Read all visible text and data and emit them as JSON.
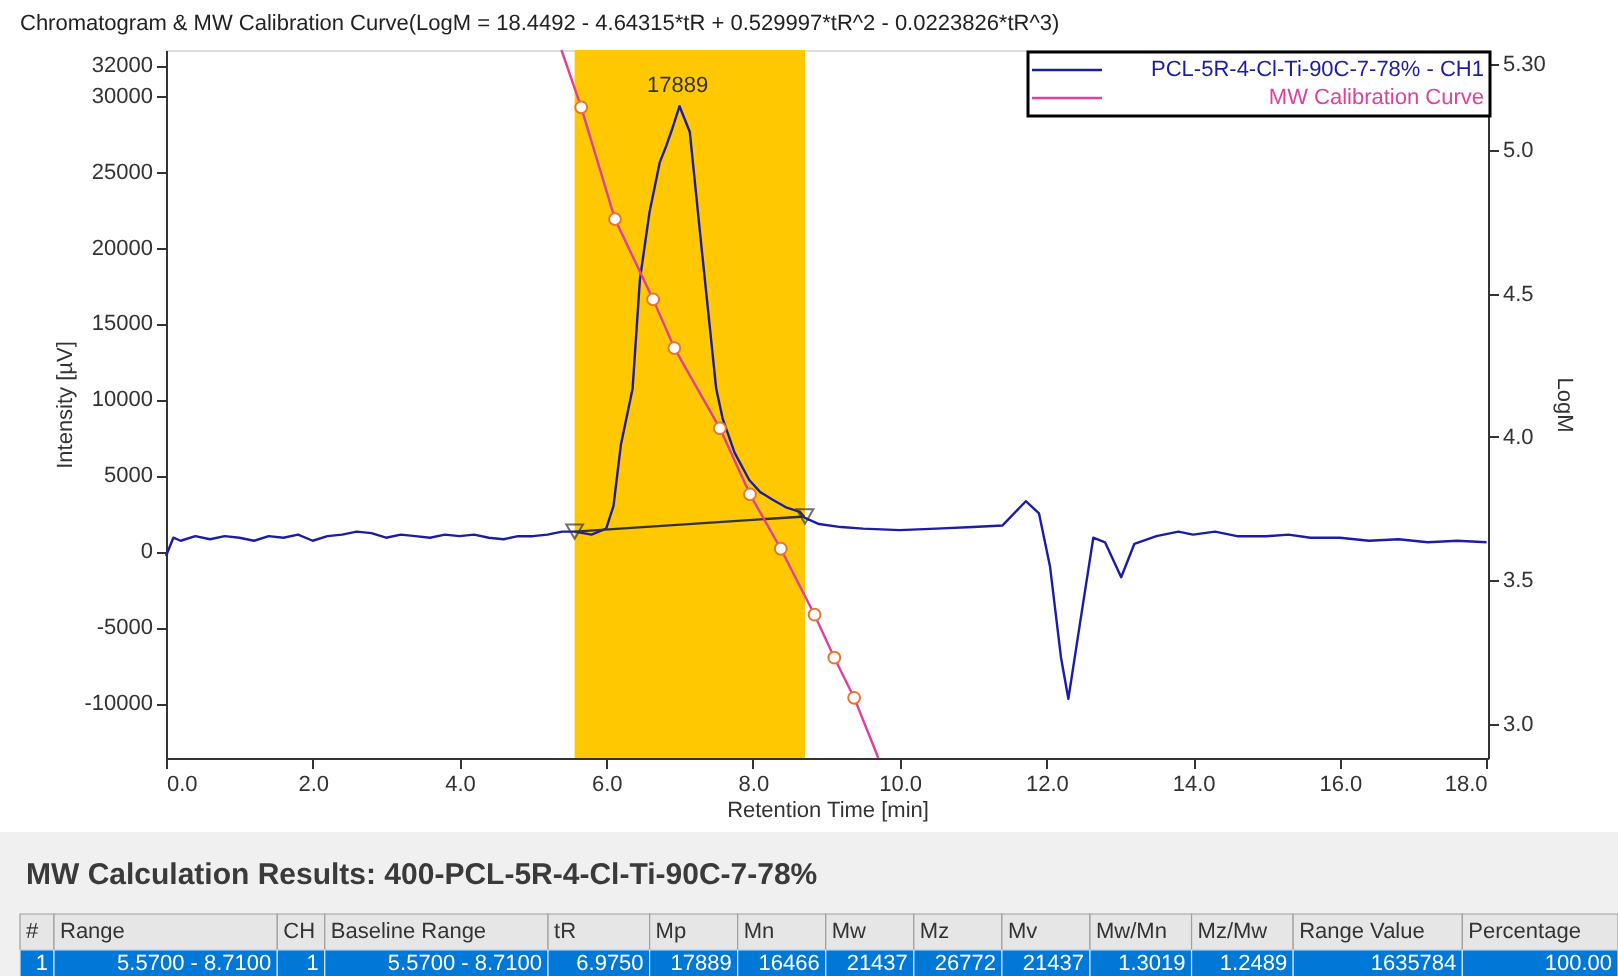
{
  "chart_data": {
    "type": "line",
    "title": "Chromatogram & MW Calibration Curve(LogM = 18.4492 - 4.64315*tR + 0.529997*tR^2 - 0.0223826*tR^3)",
    "xlabel": "Retention Time [min]",
    "ylabel": "Intensity [µV]",
    "y2label": "LogM",
    "xlim": [
      0,
      18.02
    ],
    "xticks": [
      {
        "value": 0,
        "label": "0.0"
      },
      {
        "value": 2,
        "label": "2.0"
      },
      {
        "value": 4,
        "label": "4.0"
      },
      {
        "value": 6,
        "label": "6.0"
      },
      {
        "value": 8,
        "label": "8.0"
      },
      {
        "value": 10,
        "label": "10.0"
      },
      {
        "value": 12,
        "label": "12.0"
      },
      {
        "value": 14,
        "label": "14.0"
      },
      {
        "value": 16,
        "label": "16.0"
      },
      {
        "value": 18,
        "label": "18.0"
      }
    ],
    "ylim": [
      -13600,
      33000
    ],
    "yticks": [
      -10000,
      -5000,
      0,
      5000,
      10000,
      15000,
      20000,
      25000,
      30000,
      32000
    ],
    "y2lim": [
      2.88,
      5.35
    ],
    "y2ticks": [
      {
        "value": 3,
        "label": "3.0"
      },
      3.5,
      {
        "value": 4,
        "label": "4.0"
      },
      4.5,
      {
        "value": 5,
        "label": "5.0"
      },
      {
        "value": 5.3,
        "label": "5.30"
      }
    ],
    "legend": "top right",
    "bands": [
      {
        "axis": "x",
        "from": 5.57,
        "to": 8.71,
        "color": "#ffc800"
      }
    ],
    "series": [
      {
        "name": "PCL-5R-4-Cl-Ti-90C-7-78% - CH1",
        "color": "#1c1ca8",
        "x": [
          0.0,
          0.1,
          0.2,
          0.4,
          0.6,
          0.8,
          1.0,
          1.2,
          1.4,
          1.6,
          1.8,
          2.0,
          2.2,
          2.4,
          2.6,
          2.8,
          3.0,
          3.2,
          3.4,
          3.6,
          3.8,
          4.0,
          4.2,
          4.4,
          4.6,
          4.8,
          5.0,
          5.2,
          5.4,
          5.57,
          5.8,
          6.0,
          6.1,
          6.2,
          6.36,
          6.46,
          6.59,
          6.73,
          6.82,
          6.9,
          7.0,
          7.14,
          7.3,
          7.5,
          7.59,
          7.75,
          7.95,
          8.1,
          8.27,
          8.45,
          8.64,
          8.71,
          8.9,
          9.2,
          9.5,
          10.0,
          10.5,
          11.0,
          11.4,
          11.72,
          11.9,
          12.05,
          12.2,
          12.3,
          12.45,
          12.64,
          12.8,
          13.02,
          13.2,
          13.5,
          13.8,
          14.0,
          14.3,
          14.6,
          15.0,
          15.3,
          15.6,
          16.0,
          16.4,
          16.8,
          17.2,
          17.6,
          18.0
        ],
        "values": [
          -300,
          900,
          700,
          1000,
          800,
          1000,
          900,
          700,
          1000,
          900,
          1100,
          700,
          1000,
          1100,
          1300,
          1200,
          900,
          1100,
          1000,
          900,
          1100,
          1000,
          1100,
          900,
          800,
          1000,
          1000,
          1100,
          1300,
          1300,
          1100,
          1500,
          3000,
          7000,
          10700,
          17900,
          22300,
          25600,
          26700,
          27800,
          29300,
          27600,
          20000,
          10700,
          8700,
          6500,
          4700,
          3900,
          3400,
          2900,
          2600,
          2200,
          1800,
          1600,
          1500,
          1400,
          1500,
          1600,
          1700,
          3300,
          2500,
          -1000,
          -7000,
          -9700,
          -5000,
          900,
          600,
          -1700,
          500,
          1000,
          1300,
          1100,
          1300,
          1000,
          1000,
          1100,
          900,
          900,
          700,
          800,
          600,
          700,
          600
        ]
      },
      {
        "name": "MW Calibration Curve",
        "axis": "y2",
        "color": "#e0409c",
        "x": [
          5.39,
          5.66,
          6.12,
          6.64,
          6.93,
          7.55,
          7.96,
          8.38,
          8.84,
          9.11,
          9.38,
          9.71
        ],
        "values": [
          5.35,
          5.15,
          4.76,
          4.48,
          4.31,
          4.03,
          3.8,
          3.61,
          3.38,
          3.23,
          3.09,
          2.88
        ]
      },
      {
        "type": "scatter",
        "axis": "y2",
        "color": "#e8772e",
        "marker": "circle",
        "x": [
          5.66,
          6.12,
          6.64,
          6.93,
          7.55,
          7.96,
          8.38,
          8.84,
          9.11,
          9.38
        ],
        "values": [
          5.15,
          4.76,
          4.48,
          4.31,
          4.03,
          3.8,
          3.61,
          3.38,
          3.23,
          3.09
        ]
      },
      {
        "color": "#333333",
        "marker": "triangle",
        "x": [
          5.57,
          8.71
        ],
        "values": [
          1300,
          2300
        ]
      }
    ],
    "annotations": [
      {
        "text": "17889",
        "x": 6.975,
        "y": 29300
      },
      "MW Calculation Results: 400-PCL-5R-4-Cl-Ti-90C-7-78%",
      "#",
      "Range",
      "CH",
      "Baseline Range",
      "tR",
      "Mp",
      "Mn",
      "Mw",
      "Mz",
      "Mv",
      "Mw/Mn",
      "Mz/Mw",
      "Range Value",
      "Percentage",
      "1",
      "5.5700 - 8.7100",
      "1",
      "5.5700 - 8.7100",
      "6.9750",
      "17889",
      "16466",
      "21437",
      "26772",
      "21437",
      "1.3019",
      "1.2489",
      "1635784",
      "100.00"
    ]
  }
}
